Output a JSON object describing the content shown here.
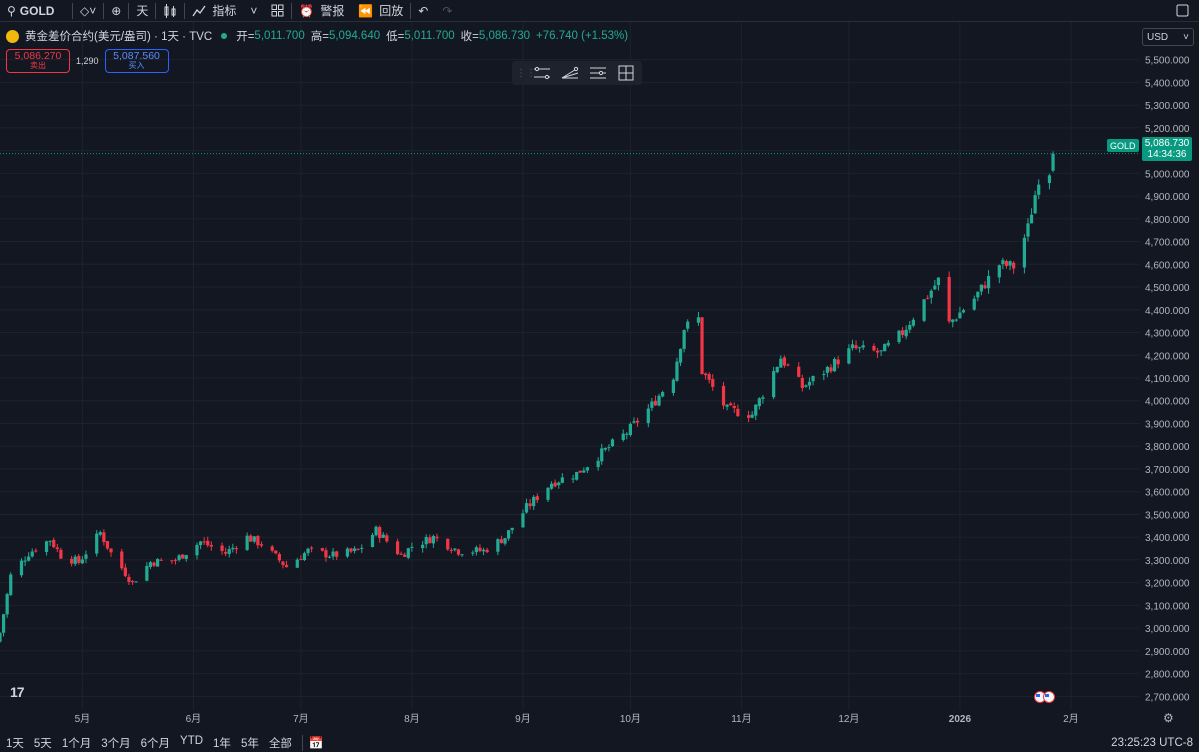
{
  "toolbar": {
    "symbol": "GOLD",
    "interval": "天",
    "indicators": "指标",
    "alerts": "警报",
    "replay": "回放"
  },
  "legend": {
    "title": "黄金差价合约(美元/盎司) · 1天 · TVC",
    "open_label": "开=",
    "open": "5,011.700",
    "high_label": "高=",
    "high": "5,094.640",
    "low_label": "低=",
    "low": "5,011.700",
    "close_label": "收=",
    "close": "5,086.730",
    "change": "+76.740 (+1.53%)"
  },
  "quote": {
    "sell_price": "5,086.270",
    "sell_label": "卖出",
    "spread": "1,290",
    "buy_price": "5,087.560",
    "buy_label": "买入"
  },
  "currency": "USD",
  "last_price_tag": {
    "symbol": "GOLD",
    "price": "5,086.730",
    "countdown": "14:34:36"
  },
  "bottom": {
    "ranges": [
      "1天",
      "5天",
      "1个月",
      "3个月",
      "6个月",
      "YTD",
      "1年",
      "5年",
      "全部"
    ],
    "time": "23:25:23 UTC-8"
  },
  "colors": {
    "up": "#22ab94",
    "down": "#f23645",
    "background": "#131722",
    "grid": "#1e222d"
  },
  "chart_data": {
    "type": "candlestick",
    "y_axis_ticks": [
      2700,
      2800,
      2900,
      3000,
      3100,
      3200,
      3300,
      3400,
      3500,
      3600,
      3700,
      3800,
      3900,
      4000,
      4100,
      4200,
      4300,
      4400,
      4500,
      4600,
      4700,
      4800,
      4900,
      5000,
      5100,
      5200,
      5300,
      5400,
      5500
    ],
    "y_axis_labels": [
      "2,700.000",
      "2,800.000",
      "2,900.000",
      "3,000.000",
      "3,100.000",
      "3,200.000",
      "3,300.000",
      "3,400.000",
      "3,500.000",
      "3,600.000",
      "3,700.000",
      "3,800.000",
      "3,900.000",
      "4,000.000",
      "4,100.000",
      "4,200.000",
      "4,300.000",
      "4,400.000",
      "4,500.000",
      "4,600.000",
      "4,700.000",
      "4,800.000",
      "4,900.000",
      "5,000.000",
      "5,100.000",
      "5,200.000",
      "5,300.000",
      "5,400.000",
      "5,500.000"
    ],
    "ylim": [
      2640,
      5560
    ],
    "x_axis_labels": [
      {
        "label": "5月",
        "date": "2025-05-01"
      },
      {
        "label": "6月",
        "date": "2025-06-01"
      },
      {
        "label": "7月",
        "date": "2025-07-01"
      },
      {
        "label": "8月",
        "date": "2025-08-01"
      },
      {
        "label": "9月",
        "date": "2025-09-01"
      },
      {
        "label": "10月",
        "date": "2025-10-01"
      },
      {
        "label": "11月",
        "date": "2025-11-01"
      },
      {
        "label": "12月",
        "date": "2025-12-01"
      },
      {
        "label": "2026",
        "date": "2026-01-01"
      },
      {
        "label": "2月",
        "date": "2026-02-01"
      }
    ],
    "xlim": [
      "2025-04-08",
      "2026-02-20"
    ],
    "last_price": 5086.73,
    "close_keypoints": [
      [
        "2025-04-08",
        2980
      ],
      [
        "2025-04-11",
        3230
      ],
      [
        "2025-04-16",
        3330
      ],
      [
        "2025-04-22",
        3390
      ],
      [
        "2025-04-25",
        3320
      ],
      [
        "2025-04-30",
        3290
      ],
      [
        "2025-05-06",
        3420
      ],
      [
        "2025-05-09",
        3330
      ],
      [
        "2025-05-15",
        3200
      ],
      [
        "2025-05-20",
        3290
      ],
      [
        "2025-05-27",
        3300
      ],
      [
        "2025-06-03",
        3380
      ],
      [
        "2025-06-10",
        3330
      ],
      [
        "2025-06-16",
        3400
      ],
      [
        "2025-06-20",
        3370
      ],
      [
        "2025-06-27",
        3270
      ],
      [
        "2025-07-03",
        3340
      ],
      [
        "2025-07-10",
        3320
      ],
      [
        "2025-07-17",
        3340
      ],
      [
        "2025-07-22",
        3430
      ],
      [
        "2025-07-29",
        3320
      ],
      [
        "2025-08-01",
        3360
      ],
      [
        "2025-08-07",
        3400
      ],
      [
        "2025-08-14",
        3340
      ],
      [
        "2025-08-21",
        3340
      ],
      [
        "2025-08-27",
        3400
      ],
      [
        "2025-09-02",
        3530
      ],
      [
        "2025-09-09",
        3640
      ],
      [
        "2025-09-16",
        3680
      ],
      [
        "2025-09-23",
        3770
      ],
      [
        "2025-09-30",
        3860
      ],
      [
        "2025-10-07",
        3980
      ],
      [
        "2025-10-13",
        4110
      ],
      [
        "2025-10-16",
        4320
      ],
      [
        "2025-10-20",
        4360
      ],
      [
        "2025-10-21",
        4130
      ],
      [
        "2025-10-28",
        3960
      ],
      [
        "2025-11-04",
        3940
      ],
      [
        "2025-11-12",
        4190
      ],
      [
        "2025-11-18",
        4060
      ],
      [
        "2025-11-25",
        4140
      ],
      [
        "2025-12-02",
        4230
      ],
      [
        "2025-12-10",
        4210
      ],
      [
        "2025-12-16",
        4300
      ],
      [
        "2025-12-22",
        4440
      ],
      [
        "2025-12-26",
        4530
      ],
      [
        "2025-12-29",
        4340
      ],
      [
        "2026-01-05",
        4450
      ],
      [
        "2026-01-12",
        4600
      ],
      [
        "2026-01-16",
        4590
      ],
      [
        "2026-01-20",
        4760
      ],
      [
        "2026-01-23",
        4980
      ],
      [
        "2026-01-26",
        5010
      ],
      [
        "2026-01-27",
        5086.73
      ]
    ]
  }
}
